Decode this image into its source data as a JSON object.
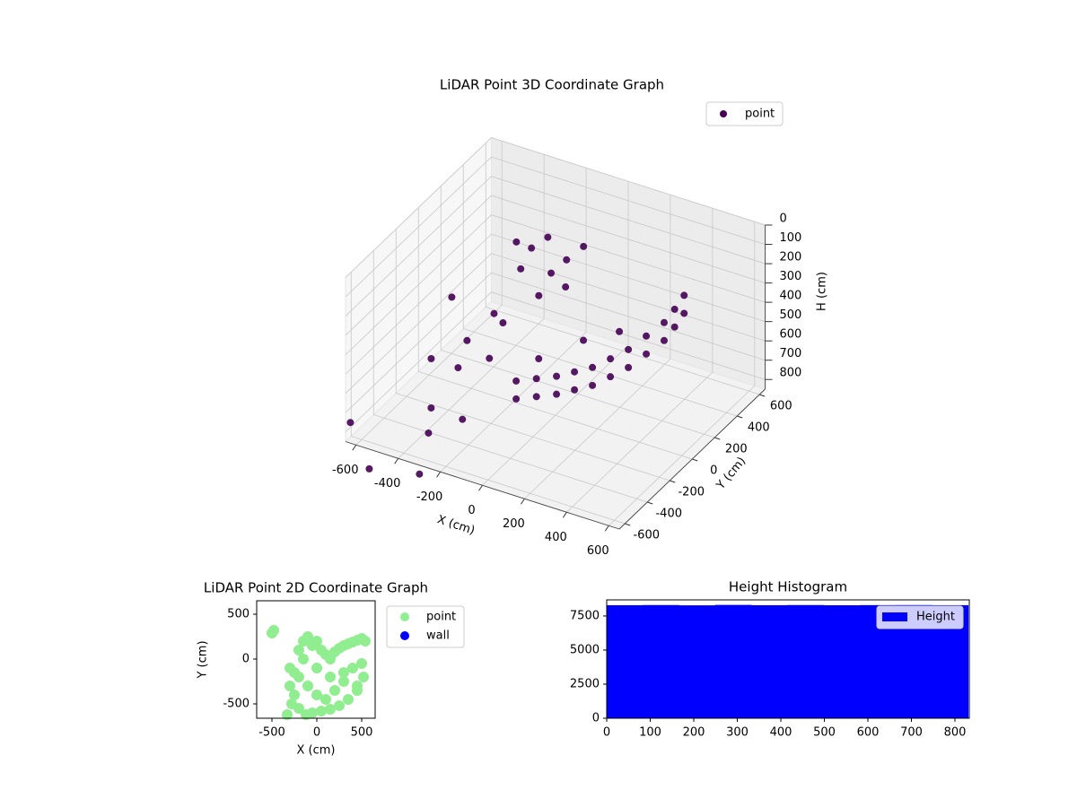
{
  "chart_data": [
    {
      "type": "scatter3d",
      "title": "LiDAR Point 3D Coordinate Graph",
      "xlabel": "X (cm)",
      "ylabel": "Y (cm)",
      "zlabel": "H (cm)",
      "xlim": [
        -650,
        650
      ],
      "ylim": [
        -650,
        650
      ],
      "zlim": [
        850,
        0
      ],
      "xticks": [
        -600,
        -400,
        -200,
        0,
        200,
        400,
        600
      ],
      "yticks": [
        -600,
        -400,
        -200,
        0,
        200,
        400,
        600
      ],
      "zticks": [
        0,
        100,
        200,
        300,
        400,
        500,
        600,
        700,
        800
      ],
      "grid": true,
      "legend": "upper right",
      "series": [
        {
          "name": "point",
          "color": "#440154",
          "x": [
            107,
            272,
            416,
            560,
            570,
            505,
            107,
            272,
            416,
            560,
            570,
            505,
            81,
            240,
            304,
            -185,
            -89,
            54,
            -52,
            22,
            -111,
            -483,
            -366,
            -291,
            -302,
            -180,
            -222,
            -627,
            -430,
            -228,
            -336,
            -545,
            -299,
            -564,
            190,
            190,
            344,
            344,
            488,
            488,
            565,
            565,
            540,
            540,
            -20,
            -140,
            0
          ],
          "y": [
            -550,
            -500,
            -450,
            -400,
            -100,
            200,
            -550,
            -500,
            -450,
            -400,
            -100,
            200,
            -300,
            -200,
            0,
            0,
            100,
            150,
            -50,
            50,
            -100,
            -200,
            -100,
            0,
            -300,
            -250,
            -50,
            -650,
            -300,
            -400,
            -500,
            100,
            -650,
            -600,
            -525,
            -525,
            -475,
            -475,
            -425,
            -425,
            -250,
            -250,
            50,
            50,
            0,
            50,
            100
          ],
          "z": [
            328,
            274,
            206,
            91,
            115,
            164,
            421,
            367,
            299,
            184,
            208,
            257,
            361,
            266,
            310,
            16,
            14,
            40,
            220,
            205,
            74,
            613,
            534,
            424,
            541,
            478,
            420,
            743,
            794,
            727,
            780,
            483,
            896,
            989,
            301,
            394,
            240,
            333,
            150,
            243,
            103,
            196,
            140,
            232,
            120,
            60,
            100
          ]
        }
      ]
    },
    {
      "type": "scatter",
      "title": "LiDAR Point 2D Coordinate Graph",
      "xlabel": "X (cm)",
      "ylabel": "Y (cm)",
      "xlim": [
        -670,
        650
      ],
      "ylim": [
        -660,
        650
      ],
      "xticks": [
        -500,
        0,
        500
      ],
      "yticks": [
        -500,
        0,
        500
      ],
      "legend": "outside right",
      "series": [
        {
          "name": "point",
          "color": "#90ee90",
          "x": [
            -500,
            -480,
            -330,
            -300,
            -250,
            -200,
            -150,
            -100,
            -50,
            0,
            50,
            100,
            150,
            200,
            250,
            300,
            350,
            400,
            450,
            500,
            540,
            -280,
            -200,
            -120,
            -50,
            50,
            150,
            250,
            350,
            450,
            520,
            -300,
            -200,
            -100,
            0,
            100,
            200,
            300,
            400,
            500,
            -250,
            -150,
            0,
            150,
            300,
            450
          ],
          "y": [
            290,
            320,
            -620,
            -300,
            -150,
            100,
            200,
            250,
            150,
            200,
            100,
            50,
            0,
            80,
            120,
            150,
            170,
            190,
            210,
            230,
            200,
            -500,
            -550,
            -620,
            -600,
            -580,
            -560,
            -520,
            -450,
            -350,
            -200,
            -100,
            -200,
            -300,
            -400,
            -450,
            -350,
            -250,
            -100,
            -50,
            -400,
            0,
            -100,
            -200,
            -150,
            -300
          ]
        },
        {
          "name": "wall",
          "color": "#0000ff",
          "x": [],
          "y": []
        }
      ]
    },
    {
      "type": "histogram",
      "title": "Height Histogram",
      "xlim": [
        0,
        833
      ],
      "ylim": [
        0,
        8680
      ],
      "xticks": [
        0,
        100,
        200,
        300,
        400,
        500,
        600,
        700,
        800
      ],
      "yticks": [
        0,
        2500,
        5000,
        7500
      ],
      "legend": "upper right",
      "series": [
        {
          "name": "Height",
          "color": "#0000ff",
          "bins": [
            0,
            83,
            166,
            249,
            332,
            415,
            498,
            581,
            664,
            747,
            830
          ],
          "values": [
            8290,
            8300,
            8280,
            8310,
            8290,
            8300,
            8285,
            8295,
            8300,
            8290
          ]
        }
      ]
    }
  ]
}
